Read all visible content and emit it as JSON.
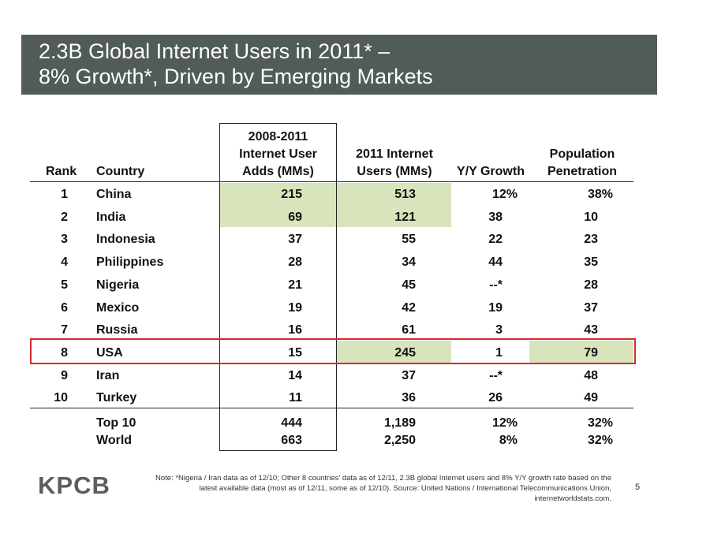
{
  "title": {
    "line1": "2.3B Global Internet Users in 2011* –",
    "line2": "8% Growth*, Driven by Emerging Markets"
  },
  "headers": {
    "rank": "Rank",
    "country": "Country",
    "adds": [
      "2008-2011",
      "Internet User",
      "Adds (MMs)"
    ],
    "users": [
      "2011 Internet",
      "Users (MMs)"
    ],
    "growth": "Y/Y Growth",
    "penetration": [
      "Population",
      "Penetration"
    ]
  },
  "rows": [
    {
      "rank": "1",
      "country": "China",
      "adds": "215",
      "users": "513",
      "growth": "12%",
      "penetration": "38%"
    },
    {
      "rank": "2",
      "country": "India",
      "adds": "69",
      "users": "121",
      "growth": "38",
      "penetration": "10"
    },
    {
      "rank": "3",
      "country": "Indonesia",
      "adds": "37",
      "users": "55",
      "growth": "22",
      "penetration": "23"
    },
    {
      "rank": "4",
      "country": "Philippines",
      "adds": "28",
      "users": "34",
      "growth": "44",
      "penetration": "35"
    },
    {
      "rank": "5",
      "country": "Nigeria",
      "adds": "21",
      "users": "45",
      "growth": "--*",
      "penetration": "28"
    },
    {
      "rank": "6",
      "country": "Mexico",
      "adds": "19",
      "users": "42",
      "growth": "19",
      "penetration": "37"
    },
    {
      "rank": "7",
      "country": "Russia",
      "adds": "16",
      "users": "61",
      "growth": "3",
      "penetration": "43"
    },
    {
      "rank": "8",
      "country": "USA",
      "adds": "15",
      "users": "245",
      "growth": "1",
      "penetration": "79"
    },
    {
      "rank": "9",
      "country": "Iran",
      "adds": "14",
      "users": "37",
      "growth": "--*",
      "penetration": "48"
    },
    {
      "rank": "10",
      "country": "Turkey",
      "adds": "11",
      "users": "36",
      "growth": "26",
      "penetration": "49"
    }
  ],
  "totals": [
    {
      "label": "Top 10",
      "adds": "444",
      "users": "1,189",
      "growth": "12%",
      "penetration": "32%"
    },
    {
      "label": "World",
      "adds": "663",
      "users": "2,250",
      "growth": "8%",
      "penetration": "32%"
    }
  ],
  "highlight_color": "#d8e4bc",
  "title_bar_color": "#515b58",
  "outline_color": "#d62b2b",
  "logo": "KPCB",
  "note": [
    "Note: *Nigeria / Iran data as of 12/10; Other 8 countries' data as of 12/11, 2.3B global Internet users and 8% Y/Y growth rate based on the",
    "latest available data (most as of 12/11, some as of 12/10). Source: United Nations / International Telecommunications Union,",
    "internetworldstats.com."
  ],
  "page_number": "5"
}
